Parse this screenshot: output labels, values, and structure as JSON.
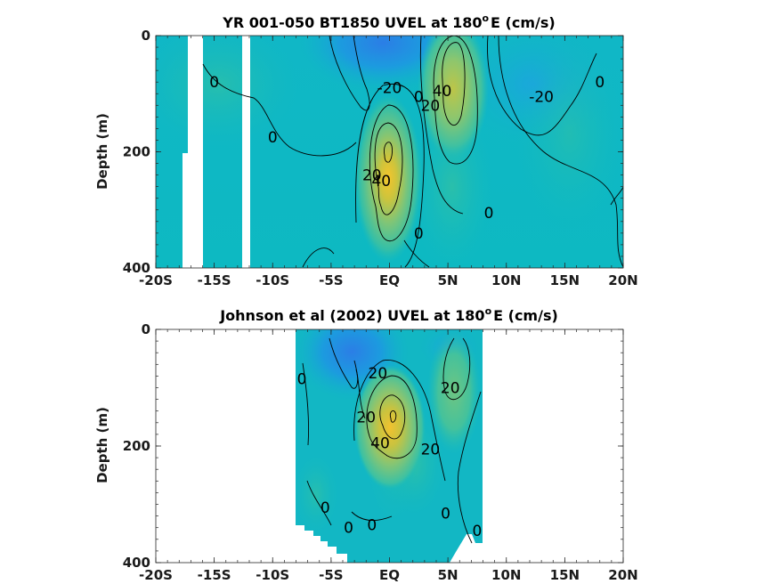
{
  "chart_data": [
    {
      "type": "heatmap",
      "title": "YR 001-050 BT1850 UVEL at 180",
      "title_sup": "o",
      "title_tail": "E (cm/s)",
      "xlabel": "",
      "ylabel": "Depth (m)",
      "x_ticks": [
        "-20S",
        "-15S",
        "-10S",
        "-5S",
        "EQ",
        "5N",
        "10N",
        "15N",
        "20N"
      ],
      "x_tick_values": [
        -20,
        -15,
        -10,
        -5,
        0,
        5,
        10,
        15,
        20
      ],
      "y_ticks": [
        "0",
        "200",
        "400"
      ],
      "y_tick_values": [
        0,
        200,
        400
      ],
      "xlim": [
        -20,
        20
      ],
      "ylim": [
        400,
        0
      ],
      "y_reversed": true,
      "colormap": "parula",
      "masked_lon_bands": [
        [
          -17.5,
          -15.8
        ],
        [
          -12.6,
          -12.0
        ]
      ],
      "masked_lon_band_depth_start": [
        0,
        200
      ],
      "features": [
        {
          "name": "undercurrent core",
          "lon": 0.5,
          "depth": 200,
          "value": 50
        },
        {
          "name": "eastward jet",
          "lon": 5.5,
          "depth": 80,
          "value": 45
        },
        {
          "name": "south equatorial current",
          "lon": -0.5,
          "depth": 30,
          "value": -30
        },
        {
          "name": "westward flow",
          "lon": 12,
          "depth": 70,
          "value": -20
        }
      ],
      "contour_labels": [
        {
          "text": "0",
          "lon": -15,
          "depth": 80
        },
        {
          "text": "0",
          "lon": -10,
          "depth": 175
        },
        {
          "text": "-20",
          "lon": 0,
          "depth": 90
        },
        {
          "text": "0",
          "lon": 2.5,
          "depth": 105
        },
        {
          "text": "20",
          "lon": 3.5,
          "depth": 120
        },
        {
          "text": "40",
          "lon": 4.5,
          "depth": 95
        },
        {
          "text": "-20",
          "lon": 13,
          "depth": 105
        },
        {
          "text": "0",
          "lon": 18,
          "depth": 80
        },
        {
          "text": "20",
          "lon": -1.5,
          "depth": 240
        },
        {
          "text": "40",
          "lon": -0.7,
          "depth": 250
        },
        {
          "text": "0",
          "lon": 8.5,
          "depth": 305
        },
        {
          "text": "0",
          "lon": 2.5,
          "depth": 340
        }
      ],
      "grid": false
    },
    {
      "type": "heatmap",
      "title": "Johnson et al (2002) UVEL at 180",
      "title_sup": "o",
      "title_tail": "E (cm/s)",
      "xlabel": "",
      "ylabel": "Depth (m)",
      "x_ticks": [
        "-20S",
        "-15S",
        "-10S",
        "-5S",
        "EQ",
        "5N",
        "10N",
        "15N",
        "20N"
      ],
      "x_tick_values": [
        -20,
        -15,
        -10,
        -5,
        0,
        5,
        10,
        15,
        20
      ],
      "y_ticks": [
        "0",
        "200",
        "400"
      ],
      "y_tick_values": [
        0,
        200,
        400
      ],
      "xlim": [
        -20,
        20
      ],
      "ylim": [
        400,
        0
      ],
      "y_reversed": true,
      "colormap": "parula",
      "data_lon_range": [
        -8,
        8
      ],
      "features": [
        {
          "name": "undercurrent core",
          "lon": 0.3,
          "depth": 170,
          "value": 50
        },
        {
          "name": "south equatorial current",
          "lon": -3,
          "depth": 60,
          "value": -25
        },
        {
          "name": "eastward flow",
          "lon": 6,
          "depth": 120,
          "value": 25
        }
      ],
      "contour_labels": [
        {
          "text": "0",
          "lon": -7.5,
          "depth": 85
        },
        {
          "text": "20",
          "lon": -1,
          "depth": 75
        },
        {
          "text": "20",
          "lon": 5.2,
          "depth": 100
        },
        {
          "text": "20",
          "lon": -2,
          "depth": 150
        },
        {
          "text": "40",
          "lon": -0.8,
          "depth": 195
        },
        {
          "text": "20",
          "lon": 3.5,
          "depth": 205
        },
        {
          "text": "0",
          "lon": -5.5,
          "depth": 305
        },
        {
          "text": "0",
          "lon": 4.8,
          "depth": 315
        },
        {
          "text": "0",
          "lon": -1.5,
          "depth": 335
        },
        {
          "text": "0",
          "lon": -3.5,
          "depth": 340
        },
        {
          "text": "0",
          "lon": 7.5,
          "depth": 345
        }
      ],
      "grid": false
    }
  ]
}
